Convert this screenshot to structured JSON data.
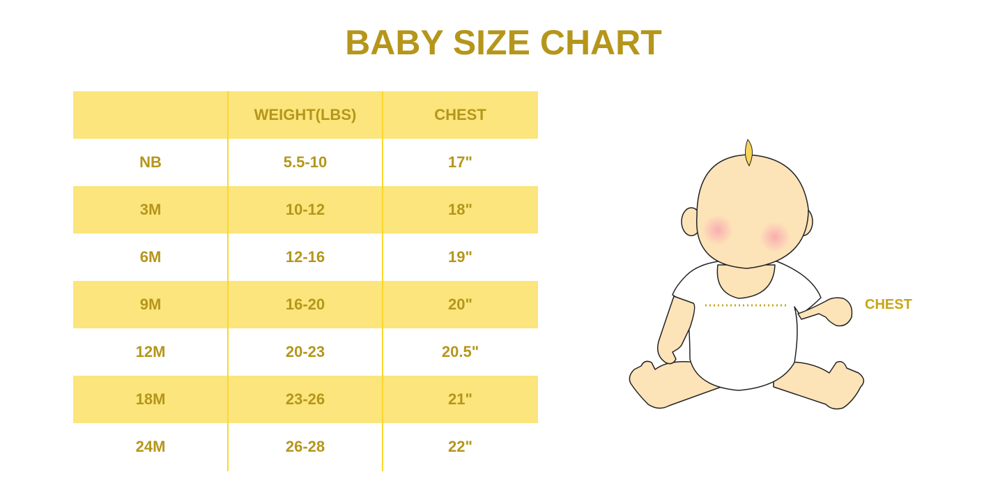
{
  "title": "BABY SIZE CHART",
  "table": {
    "headers": [
      "",
      "WEIGHT(LBS)",
      "CHEST"
    ],
    "rows": [
      [
        "NB",
        "5.5-10",
        "17\""
      ],
      [
        "3M",
        "10-12",
        "18\""
      ],
      [
        "6M",
        "12-16",
        "19\""
      ],
      [
        "9M",
        "16-20",
        "20\""
      ],
      [
        "12M",
        "20-23",
        "20.5\""
      ],
      [
        "18M",
        "23-26",
        "21\""
      ],
      [
        "24M",
        "26-28",
        "22\""
      ]
    ]
  },
  "illustration": {
    "label": "CHEST"
  },
  "colors": {
    "text": "#b5961b",
    "band": "#fbe57c",
    "divider": "#fcd72c",
    "skin": "#fde3b8"
  }
}
